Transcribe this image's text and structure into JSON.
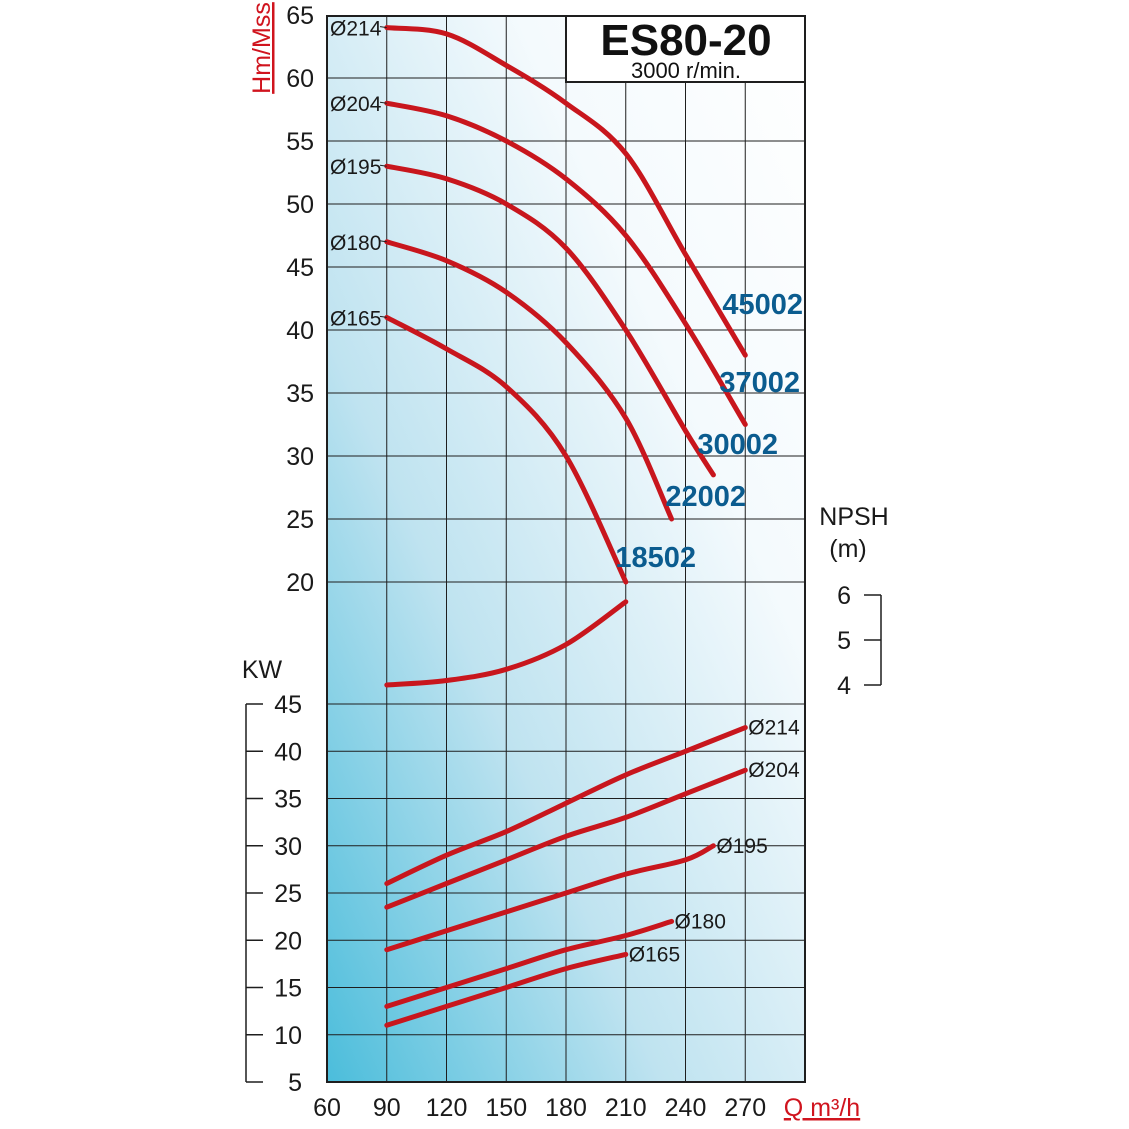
{
  "chart_data": {
    "type": "line",
    "title": "ES80-20",
    "subtitle": "3000 r/min.",
    "x_axis": {
      "label": "Q m³/h",
      "ticks": [
        60,
        90,
        120,
        150,
        180,
        210,
        240,
        270
      ],
      "range": [
        60,
        300
      ]
    },
    "head_axis": {
      "label": "Hm/Mss",
      "ticks": [
        20,
        25,
        30,
        35,
        40,
        45,
        50,
        55,
        60,
        65
      ],
      "range": [
        20,
        65
      ]
    },
    "power_axis": {
      "label": "KW",
      "ticks": [
        5,
        10,
        15,
        20,
        25,
        30,
        35,
        40,
        45
      ],
      "range": [
        5,
        45
      ]
    },
    "npsh_axis": {
      "label": "NPSH",
      "unit": "(m)",
      "ticks": [
        4,
        5,
        6
      ],
      "range": [
        4,
        6
      ]
    },
    "head_curves": [
      {
        "diameter": "Ø214",
        "model": "45002",
        "points": [
          [
            90,
            64
          ],
          [
            120,
            63.5
          ],
          [
            150,
            61
          ],
          [
            180,
            58
          ],
          [
            210,
            54
          ],
          [
            240,
            46
          ],
          [
            270,
            38
          ]
        ]
      },
      {
        "diameter": "Ø204",
        "model": "37002",
        "points": [
          [
            90,
            58
          ],
          [
            120,
            57
          ],
          [
            150,
            55
          ],
          [
            180,
            52
          ],
          [
            210,
            47.5
          ],
          [
            240,
            40.5
          ],
          [
            270,
            32.5
          ]
        ]
      },
      {
        "diameter": "Ø195",
        "model": "30002",
        "points": [
          [
            90,
            53
          ],
          [
            120,
            52
          ],
          [
            150,
            50
          ],
          [
            180,
            46.5
          ],
          [
            210,
            40
          ],
          [
            240,
            32
          ],
          [
            254,
            28.5
          ]
        ]
      },
      {
        "diameter": "Ø180",
        "model": "22002",
        "points": [
          [
            90,
            47
          ],
          [
            120,
            45.5
          ],
          [
            150,
            43
          ],
          [
            180,
            39
          ],
          [
            210,
            33
          ],
          [
            233,
            25
          ]
        ]
      },
      {
        "diameter": "Ø165",
        "model": "18502",
        "points": [
          [
            90,
            41
          ],
          [
            120,
            38.5
          ],
          [
            150,
            35.5
          ],
          [
            180,
            30
          ],
          [
            210,
            20
          ]
        ]
      }
    ],
    "npsh_curve": {
      "name": "NPSH",
      "points": [
        [
          90,
          4.0
        ],
        [
          120,
          4.1
        ],
        [
          150,
          4.35
        ],
        [
          180,
          4.9
        ],
        [
          210,
          5.85
        ]
      ]
    },
    "power_curves": [
      {
        "diameter": "Ø214",
        "points": [
          [
            90,
            26
          ],
          [
            120,
            29
          ],
          [
            150,
            31.5
          ],
          [
            180,
            34.5
          ],
          [
            210,
            37.5
          ],
          [
            240,
            40
          ],
          [
            270,
            42.5
          ]
        ]
      },
      {
        "diameter": "Ø204",
        "points": [
          [
            90,
            23.5
          ],
          [
            120,
            26
          ],
          [
            150,
            28.5
          ],
          [
            180,
            31
          ],
          [
            210,
            33
          ],
          [
            240,
            35.5
          ],
          [
            270,
            38
          ]
        ]
      },
      {
        "diameter": "Ø195",
        "points": [
          [
            90,
            19
          ],
          [
            120,
            21
          ],
          [
            150,
            23
          ],
          [
            180,
            25
          ],
          [
            210,
            27
          ],
          [
            240,
            28.5
          ],
          [
            254,
            30
          ]
        ]
      },
      {
        "diameter": "Ø180",
        "points": [
          [
            90,
            13
          ],
          [
            120,
            15
          ],
          [
            150,
            17
          ],
          [
            180,
            19
          ],
          [
            210,
            20.5
          ],
          [
            233,
            22
          ]
        ]
      },
      {
        "diameter": "Ø165",
        "points": [
          [
            90,
            11
          ],
          [
            120,
            13
          ],
          [
            150,
            15
          ],
          [
            180,
            17
          ],
          [
            210,
            18.5
          ]
        ]
      }
    ],
    "grid": true
  }
}
